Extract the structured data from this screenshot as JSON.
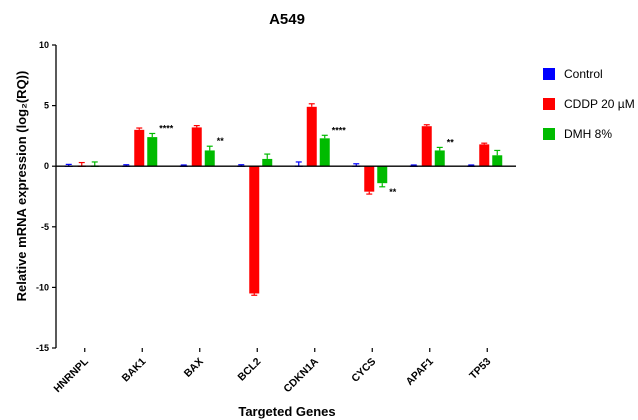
{
  "chart_data": {
    "type": "bar",
    "title": "A549",
    "xlabel": "Targeted Genes",
    "ylabel": "Relative mRNA expression (log₂(RQ))",
    "ylim": [
      -15,
      10
    ],
    "yticks": [
      10,
      5,
      0,
      -5,
      -10,
      -15
    ],
    "categories": [
      "HNRNPL",
      "BAK1",
      "BAX",
      "BCL2",
      "CDKN1A",
      "CYCS",
      "APAF1",
      "TP53"
    ],
    "series": [
      {
        "name": "Control",
        "color": "#0000ff",
        "values": [
          0,
          0,
          0,
          0,
          0,
          0,
          0,
          0
        ],
        "errors": [
          0.15,
          0.12,
          0.1,
          0.12,
          0.35,
          0.2,
          0.1,
          0.1
        ]
      },
      {
        "name": "CDDP 20 µM",
        "color": "#ff0000",
        "values": [
          0,
          3.0,
          3.2,
          -10.5,
          4.9,
          -2.1,
          3.3,
          1.8
        ],
        "errors": [
          0.3,
          0.15,
          0.15,
          0.15,
          0.25,
          0.2,
          0.12,
          0.1
        ]
      },
      {
        "name": "DMH 8%",
        "color": "#00bb00",
        "values": [
          0,
          2.4,
          1.3,
          0.6,
          2.3,
          -1.4,
          1.3,
          0.9
        ],
        "errors": [
          0.35,
          0.3,
          0.35,
          0.4,
          0.25,
          0.3,
          0.25,
          0.4
        ]
      }
    ],
    "significance": [
      {
        "category": "BAK1",
        "label": "****"
      },
      {
        "category": "BAX",
        "label": "**"
      },
      {
        "category": "CDKN1A",
        "label": "****"
      },
      {
        "category": "CYCS",
        "label": "**"
      },
      {
        "category": "APAF1",
        "label": "**"
      }
    ],
    "legend": "right",
    "grid": false
  }
}
